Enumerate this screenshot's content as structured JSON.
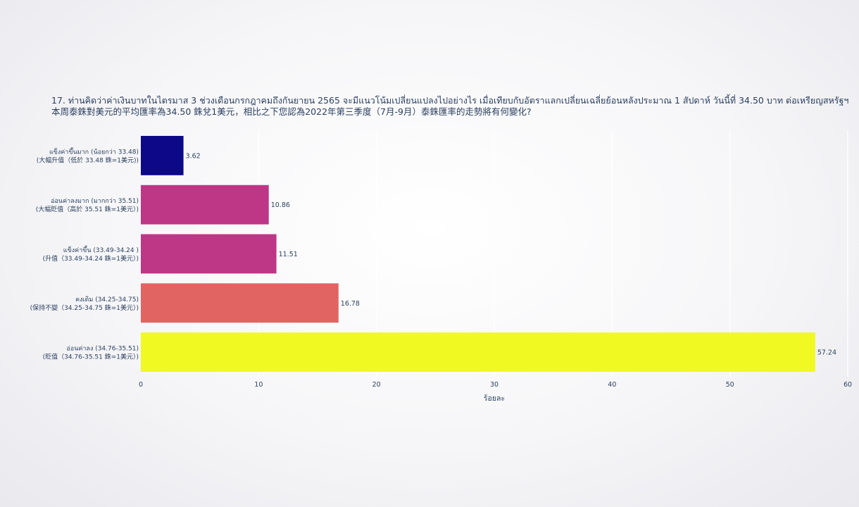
{
  "chart_data": {
    "type": "bar",
    "orientation": "horizontal",
    "title_lines": [
      "17. ท่านคิดว่าค่าเงินบาทในไตรมาส 3 ช่วงเดือนกรกฎาคมถึงกันยายน 2565 จะมีแนวโน้มเปลี่ยนแปลงไปอย่างไร เมื่อเทียบกับอัตราแลกเปลี่ยนเฉลี่ยย้อนหลังประมาณ 1 สัปดาห์ วันนี้ที่ 34.50 บาท ต่อเหรียญสหรัฐฯ",
      "本周泰銖對美元的平均匯率為34.50 銖兌1美元，相比之下您認為2022年第三季度（7月-9月）泰銖匯率的走勢將有何變化?"
    ],
    "categories": [
      [
        "แข็งค่าขึ้นมาก (น้อยกว่า 33.48)",
        "(大幅升值（低於 33.48 銖=1美元))"
      ],
      [
        "อ่อนค่าลงมาก (มากกว่า 35.51)",
        "(大幅貶值（高於 35.51 銖=1美元）)"
      ],
      [
        "แข็งค่าขึ้น (33.49-34.24 )",
        "(升值（33.49-34.24 銖=1美元）)"
      ],
      [
        "คงเดิม (34.25-34.75)",
        "(保持不變（34.25-34.75 銖=1美元）)"
      ],
      [
        "อ่อนค่าลง (34.76-35.51)",
        "(貶值（34.76-35.51 銖=1美元）)"
      ]
    ],
    "values": [
      3.62,
      10.86,
      11.51,
      16.78,
      57.24
    ],
    "value_labels": [
      "3.62",
      "10.86",
      "11.51",
      "16.78",
      "57.24"
    ],
    "colors": [
      "#0d0887",
      "#bd3786",
      "#bd3786",
      "#e16462",
      "#f0f921"
    ],
    "xlabel": "ร้อยละ",
    "xlim": [
      0,
      60
    ],
    "xticks": [
      0,
      10,
      20,
      30,
      40,
      50,
      60
    ],
    "grid": true
  }
}
